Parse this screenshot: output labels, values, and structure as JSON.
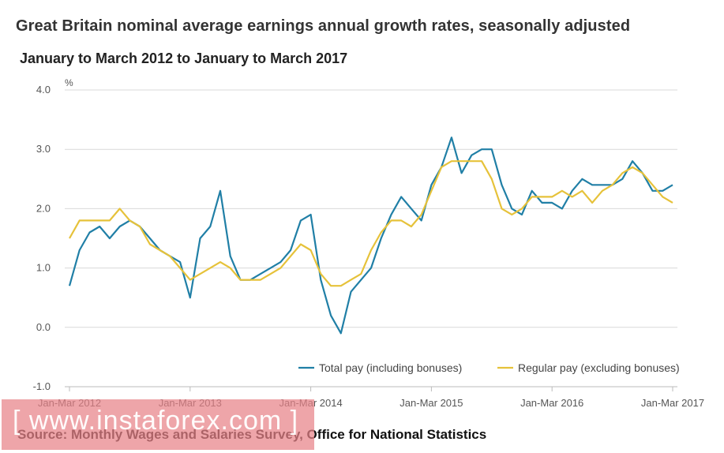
{
  "title": "Great Britain nominal average earnings annual  growth rates, seasonally adjusted",
  "subtitle": "January to March 2012 to January to March 2017",
  "source": "Source: Monthly Wages and Salaries Survey, Office for National Statistics",
  "watermark": "[ www.instaforex.com ]",
  "colors": {
    "total": "#207fa6",
    "regular": "#e6c23a",
    "grid": "#d9d9d9",
    "axis": "#bbbbbb"
  },
  "chart_data": {
    "type": "line",
    "ylabel": "%",
    "ylim": [
      -1.0,
      4.0
    ],
    "yticks": [
      "4.0",
      "3.0",
      "2.0",
      "1.0",
      "0.0",
      "-1.0"
    ],
    "yticks_values": [
      4.0,
      3.0,
      2.0,
      1.0,
      0.0,
      -1.0
    ],
    "xticks": [
      "Jan-Mar 2012",
      "Jan-Mar 2013",
      "Jan-Mar 2014",
      "Jan-Mar 2015",
      "Jan-Mar 2016",
      "Jan-Mar 2017"
    ],
    "xticks_index": [
      0,
      12,
      24,
      36,
      48,
      60
    ],
    "legend_position": "bottom-right",
    "grid": true,
    "series": [
      {
        "name": "Total pay (including bonuses)",
        "values": [
          0.7,
          1.3,
          1.6,
          1.7,
          1.5,
          1.7,
          1.8,
          1.7,
          1.5,
          1.3,
          1.2,
          1.1,
          0.5,
          1.5,
          1.7,
          2.3,
          1.2,
          0.8,
          0.8,
          0.9,
          1.0,
          1.1,
          1.3,
          1.8,
          1.9,
          0.8,
          0.2,
          -0.1,
          0.6,
          0.8,
          1.0,
          1.5,
          1.9,
          2.2,
          2.0,
          1.8,
          2.4,
          2.7,
          3.2,
          2.6,
          2.9,
          3.0,
          3.0,
          2.4,
          2.0,
          1.9,
          2.3,
          2.1,
          2.1,
          2.0,
          2.3,
          2.5,
          2.4,
          2.4,
          2.4,
          2.5,
          2.8,
          2.6,
          2.3,
          2.3,
          2.4
        ]
      },
      {
        "name": "Regular pay (excluding bonuses)",
        "values": [
          1.5,
          1.8,
          1.8,
          1.8,
          1.8,
          2.0,
          1.8,
          1.7,
          1.4,
          1.3,
          1.2,
          1.0,
          0.8,
          0.9,
          1.0,
          1.1,
          1.0,
          0.8,
          0.8,
          0.8,
          0.9,
          1.0,
          1.2,
          1.4,
          1.3,
          0.9,
          0.7,
          0.7,
          0.8,
          0.9,
          1.3,
          1.6,
          1.8,
          1.8,
          1.7,
          1.9,
          2.3,
          2.7,
          2.8,
          2.8,
          2.8,
          2.8,
          2.5,
          2.0,
          1.9,
          2.0,
          2.2,
          2.2,
          2.2,
          2.3,
          2.2,
          2.3,
          2.1,
          2.3,
          2.4,
          2.6,
          2.7,
          2.6,
          2.4,
          2.2,
          2.1
        ]
      }
    ]
  }
}
